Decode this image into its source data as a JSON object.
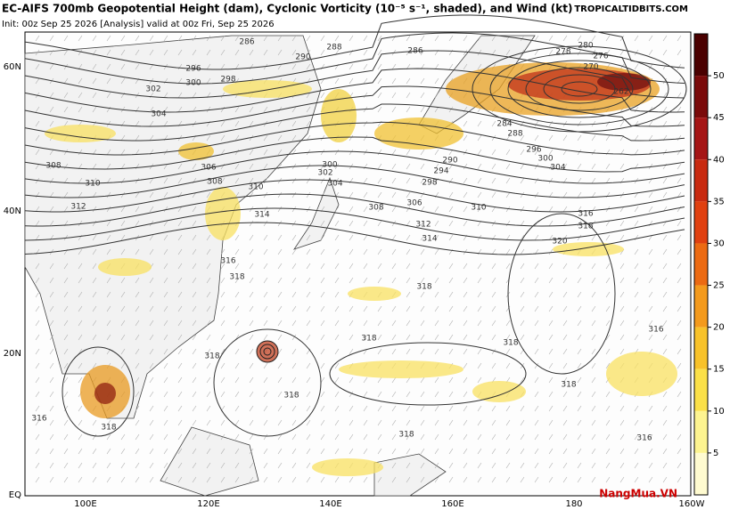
{
  "header": {
    "title": "EC-AIFS 700mb Geopotential Height (dam), Cyclonic Vorticity (10⁻⁵ s⁻¹, shaded), and Wind (kt)",
    "init": "Init: 00z Sep 25 2026   [Analysis]   valid at 00z Fri, Sep 25 2026",
    "brand": "TROPICALTIDBITS.COM"
  },
  "map": {
    "lat_labels": [
      "60N",
      "40N",
      "20N",
      "EQ"
    ],
    "lon_labels": [
      "100E",
      "120E",
      "140E",
      "160E",
      "180",
      "160W"
    ],
    "contour_labels": [
      286,
      288,
      290,
      286,
      296,
      300,
      298,
      302,
      304,
      308,
      306,
      310,
      308,
      312,
      310,
      314,
      300,
      302,
      304,
      306,
      308,
      310,
      312,
      314,
      316,
      318,
      320,
      316,
      318,
      318,
      318,
      318,
      318,
      316,
      318,
      316,
      316,
      318,
      318,
      318,
      280,
      278,
      276,
      270,
      262,
      284,
      288,
      290,
      294,
      298,
      296,
      300,
      304
    ]
  },
  "colorbar": {
    "ticks": [
      50,
      45,
      40,
      35,
      30,
      25,
      20,
      15,
      10,
      5
    ]
  },
  "watermark": "NangMua.VN"
}
